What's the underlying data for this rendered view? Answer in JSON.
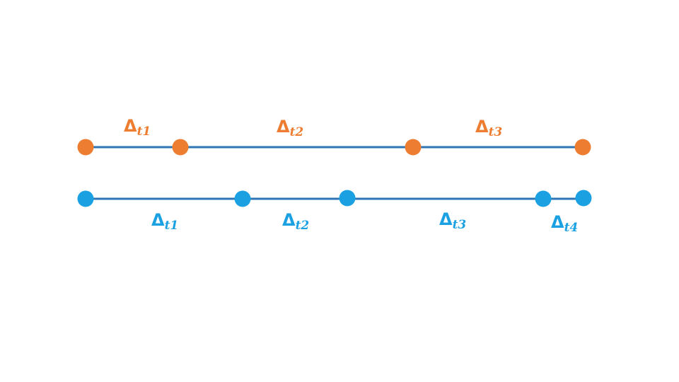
{
  "colors": {
    "line": "#2e75b6",
    "orange": "#ed7d31",
    "blue": "#1ba1e2"
  },
  "timelines": [
    {
      "name": "orange",
      "color": "#ed7d31",
      "label_position": "above",
      "intervals": [
        {
          "symbol": "Δ",
          "subscript": "t1"
        },
        {
          "symbol": "Δ",
          "subscript": "t2"
        },
        {
          "symbol": "Δ",
          "subscript": "t3"
        }
      ]
    },
    {
      "name": "blue",
      "color": "#1ba1e2",
      "label_position": "below",
      "intervals": [
        {
          "symbol": "Δ",
          "subscript": "t1"
        },
        {
          "symbol": "Δ",
          "subscript": "t2"
        },
        {
          "symbol": "Δ",
          "subscript": "t3"
        },
        {
          "symbol": "Δ",
          "subscript": "t4"
        }
      ]
    }
  ]
}
